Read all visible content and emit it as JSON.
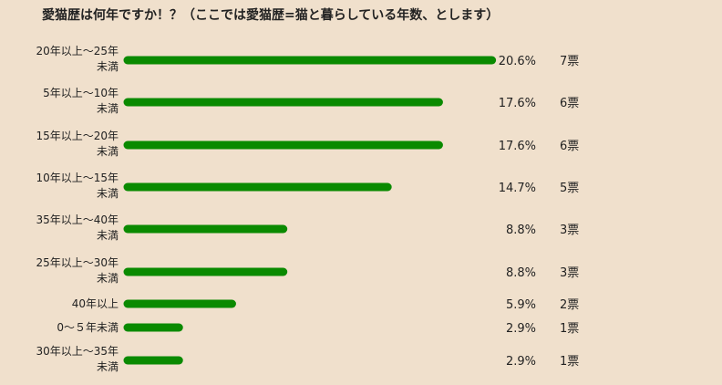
{
  "title": "愛猫歴は何年ですか！？（ここでは愛猫歴=猫と暮らしている年数、とします）",
  "chart_data": {
    "type": "bar",
    "orientation": "horizontal",
    "bar_color": "#0a8a00",
    "categories": [
      [
        "20年以上～25年",
        "未満"
      ],
      [
        "5年以上～10年",
        "未満"
      ],
      [
        "15年以上～20年",
        "未満"
      ],
      [
        "10年以上～15年",
        "未満"
      ],
      [
        "35年以上～40年",
        "未満"
      ],
      [
        "25年以上～30年",
        "未満"
      ],
      [
        "40年以上"
      ],
      [
        "0～５年未満"
      ],
      [
        "30年以上～35年",
        "未満"
      ]
    ],
    "percent_labels": [
      "20.6%",
      "17.6%",
      "17.6%",
      "14.7%",
      "8.8%",
      "8.8%",
      "5.9%",
      "2.9%",
      "2.9%"
    ],
    "values": [
      20.6,
      17.6,
      17.6,
      14.7,
      8.8,
      8.8,
      5.9,
      2.9,
      2.9
    ],
    "vote_labels": [
      "7票",
      "6票",
      "6票",
      "5票",
      "3票",
      "3票",
      "2票",
      "1票",
      "1票"
    ]
  }
}
